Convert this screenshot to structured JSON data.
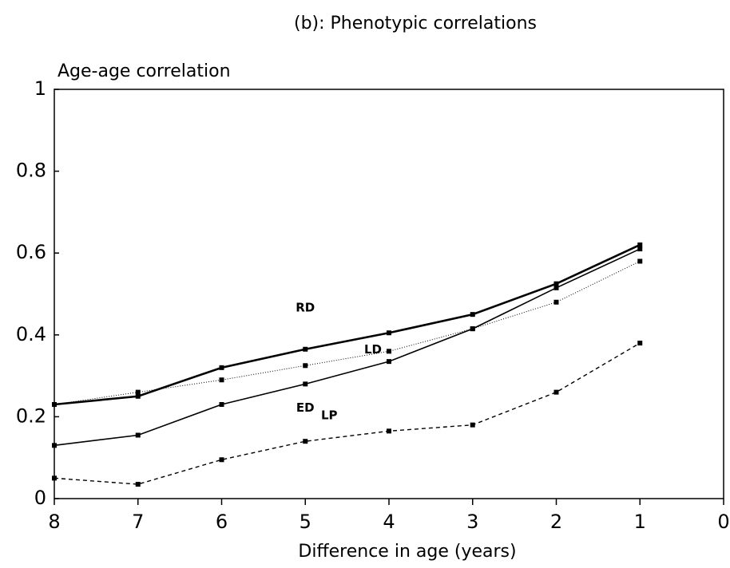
{
  "chart_data": {
    "type": "line",
    "title": "(b): Phenotypic correlations",
    "y_label": "Age-age correlation",
    "x_label": "Difference in age (years)",
    "x": [
      8,
      7,
      6,
      5,
      4,
      3,
      2,
      1
    ],
    "xlim": [
      8,
      0
    ],
    "xticks": [
      8,
      7,
      6,
      5,
      4,
      3,
      2,
      1,
      0
    ],
    "ylim": [
      0,
      1
    ],
    "yticks": [
      0,
      0.2,
      0.4,
      0.6,
      0.8,
      1
    ],
    "grid": false,
    "series": [
      {
        "name": "RD",
        "color": "#000000",
        "style": "thick",
        "values": [
          0.23,
          0.25,
          0.32,
          0.365,
          0.405,
          0.45,
          0.525,
          0.62
        ]
      },
      {
        "name": "LD",
        "color": "#000000",
        "style": "dotted",
        "values": [
          0.23,
          0.26,
          0.29,
          0.325,
          0.36,
          0.415,
          0.48,
          0.58
        ]
      },
      {
        "name": "ED",
        "color": "#000000",
        "style": "solid",
        "values": [
          0.13,
          0.155,
          0.23,
          0.28,
          0.335,
          0.415,
          0.515,
          0.61
        ]
      },
      {
        "name": "LP",
        "color": "#000000",
        "style": "dashed",
        "values": [
          0.05,
          0.035,
          0.095,
          0.14,
          0.165,
          0.18,
          0.26,
          0.38
        ]
      }
    ]
  }
}
